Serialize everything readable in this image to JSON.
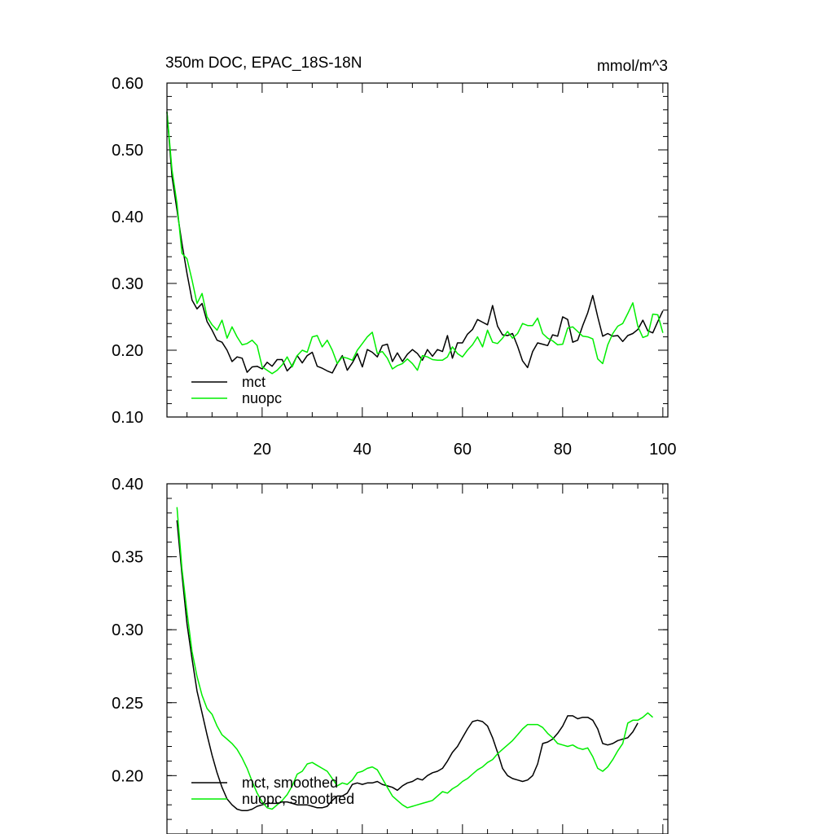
{
  "chart_data": [
    {
      "type": "line",
      "title": "350m DOC, EPAC_18S-18N",
      "units_label": "mmol/m^3",
      "xlabel": "",
      "ylabel": "",
      "xlim": [
        1,
        101
      ],
      "ylim": [
        0.1,
        0.6
      ],
      "xticks": [
        20,
        40,
        60,
        80,
        100
      ],
      "xtick_labels": [
        "20",
        "40",
        "60",
        "80",
        "100"
      ],
      "yticks": [
        0.1,
        0.2,
        0.3,
        0.4,
        0.5,
        0.6
      ],
      "ytick_labels": [
        "0.10",
        "0.20",
        "0.30",
        "0.40",
        "0.50",
        "0.60"
      ],
      "legend_position": "bottom-left",
      "series": [
        {
          "name": "mct",
          "color": "#000000",
          "x_start": 1,
          "values": [
            0.557,
            0.46,
            0.41,
            0.36,
            0.315,
            0.275,
            0.262,
            0.27,
            0.243,
            0.23,
            0.215,
            0.212,
            0.2,
            0.183,
            0.19,
            0.188,
            0.167,
            0.175,
            0.176,
            0.172,
            0.182,
            0.176,
            0.186,
            0.186,
            0.169,
            0.177,
            0.192,
            0.181,
            0.192,
            0.197,
            0.176,
            0.173,
            0.169,
            0.166,
            0.18,
            0.192,
            0.17,
            0.181,
            0.195,
            0.175,
            0.201,
            0.197,
            0.19,
            0.207,
            0.209,
            0.183,
            0.196,
            0.183,
            0.194,
            0.201,
            0.195,
            0.185,
            0.201,
            0.191,
            0.201,
            0.198,
            0.222,
            0.188,
            0.211,
            0.211,
            0.224,
            0.231,
            0.246,
            0.242,
            0.238,
            0.267,
            0.236,
            0.223,
            0.222,
            0.225,
            0.206,
            0.184,
            0.174,
            0.198,
            0.211,
            0.209,
            0.207,
            0.223,
            0.221,
            0.25,
            0.246,
            0.212,
            0.215,
            0.237,
            0.256,
            0.282,
            0.25,
            0.221,
            0.225,
            0.221,
            0.222,
            0.213,
            0.222,
            0.225,
            0.231,
            0.245,
            0.229,
            0.226,
            0.243,
            0.259
          ]
        },
        {
          "name": "nuopc",
          "color": "#00ee00",
          "x_start": 1,
          "values": [
            0.557,
            0.47,
            0.42,
            0.345,
            0.337,
            0.305,
            0.27,
            0.285,
            0.25,
            0.238,
            0.23,
            0.245,
            0.218,
            0.235,
            0.22,
            0.208,
            0.21,
            0.215,
            0.207,
            0.175,
            0.17,
            0.165,
            0.17,
            0.178,
            0.19,
            0.175,
            0.192,
            0.2,
            0.197,
            0.22,
            0.222,
            0.205,
            0.215,
            0.2,
            0.18,
            0.19,
            0.188,
            0.185,
            0.2,
            0.21,
            0.22,
            0.227,
            0.195,
            0.198,
            0.188,
            0.172,
            0.177,
            0.18,
            0.187,
            0.18,
            0.17,
            0.192,
            0.19,
            0.186,
            0.185,
            0.185,
            0.19,
            0.205,
            0.195,
            0.19,
            0.2,
            0.208,
            0.22,
            0.205,
            0.23,
            0.212,
            0.21,
            0.218,
            0.228,
            0.218,
            0.225,
            0.24,
            0.237,
            0.237,
            0.248,
            0.225,
            0.218,
            0.214,
            0.208,
            0.209,
            0.233,
            0.235,
            0.228,
            0.221,
            0.22,
            0.217,
            0.187,
            0.18,
            0.208,
            0.225,
            0.236,
            0.24,
            0.255,
            0.271,
            0.236,
            0.219,
            0.222,
            0.254,
            0.253,
            0.226
          ]
        }
      ]
    },
    {
      "type": "line",
      "title": "",
      "xlabel": "",
      "ylabel": "",
      "xlim": [
        1,
        101
      ],
      "ylim": [
        0.16,
        0.4
      ],
      "xticks": [
        20,
        40,
        60,
        80,
        100
      ],
      "xtick_labels": [],
      "yticks": [
        0.2,
        0.25,
        0.3,
        0.35,
        0.4
      ],
      "ytick_labels": [
        "0.20",
        "0.25",
        "0.30",
        "0.35",
        "0.40"
      ],
      "legend_position": "bottom-left",
      "series": [
        {
          "name": "mct, smoothed",
          "color": "#000000",
          "x_start": 3,
          "values": [
            0.375,
            0.338,
            0.304,
            0.28,
            0.258,
            0.243,
            0.228,
            0.214,
            0.202,
            0.192,
            0.184,
            0.18,
            0.177,
            0.176,
            0.176,
            0.177,
            0.179,
            0.18,
            0.181,
            0.181,
            0.181,
            0.182,
            0.182,
            0.181,
            0.18,
            0.18,
            0.18,
            0.179,
            0.178,
            0.178,
            0.179,
            0.183,
            0.186,
            0.186,
            0.188,
            0.194,
            0.195,
            0.194,
            0.195,
            0.195,
            0.196,
            0.194,
            0.193,
            0.192,
            0.19,
            0.193,
            0.195,
            0.196,
            0.198,
            0.197,
            0.2,
            0.202,
            0.203,
            0.205,
            0.21,
            0.216,
            0.22,
            0.226,
            0.232,
            0.237,
            0.238,
            0.237,
            0.234,
            0.226,
            0.216,
            0.205,
            0.2,
            0.198,
            0.197,
            0.196,
            0.197,
            0.2,
            0.208,
            0.222,
            0.223,
            0.225,
            0.229,
            0.234,
            0.241,
            0.241,
            0.239,
            0.24,
            0.24,
            0.238,
            0.232,
            0.222,
            0.221,
            0.222,
            0.224,
            0.225,
            0.226,
            0.23,
            0.236
          ]
        },
        {
          "name": "nuopc, smoothed",
          "color": "#00ee00",
          "x_start": 3,
          "values": [
            0.384,
            0.342,
            0.312,
            0.285,
            0.268,
            0.255,
            0.246,
            0.242,
            0.234,
            0.228,
            0.225,
            0.222,
            0.218,
            0.212,
            0.205,
            0.196,
            0.188,
            0.182,
            0.178,
            0.177,
            0.18,
            0.183,
            0.187,
            0.193,
            0.201,
            0.203,
            0.208,
            0.209,
            0.207,
            0.205,
            0.203,
            0.198,
            0.193,
            0.195,
            0.194,
            0.197,
            0.202,
            0.203,
            0.205,
            0.206,
            0.204,
            0.198,
            0.192,
            0.186,
            0.183,
            0.18,
            0.178,
            0.179,
            0.18,
            0.181,
            0.182,
            0.183,
            0.186,
            0.189,
            0.188,
            0.191,
            0.193,
            0.196,
            0.198,
            0.201,
            0.204,
            0.206,
            0.209,
            0.211,
            0.215,
            0.218,
            0.221,
            0.224,
            0.228,
            0.232,
            0.235,
            0.235,
            0.235,
            0.233,
            0.229,
            0.226,
            0.222,
            0.221,
            0.22,
            0.221,
            0.219,
            0.218,
            0.219,
            0.213,
            0.205,
            0.203,
            0.206,
            0.211,
            0.217,
            0.222,
            0.236,
            0.238,
            0.238,
            0.24,
            0.243,
            0.24
          ]
        }
      ]
    }
  ]
}
